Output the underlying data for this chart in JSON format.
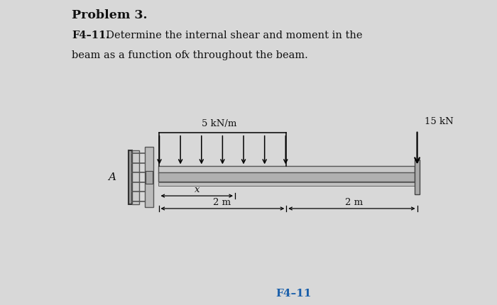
{
  "background_color": "#d8d8d8",
  "title_text": "Problem 3.",
  "problem_label": "F4–11.",
  "dist_load_label": "5 kN/m",
  "point_load_label": "15 kN",
  "dim_x_label": "x",
  "dim2_label": "2 m",
  "dim3_label": "2 m",
  "support_label": "A",
  "figure_label": "F4–11",
  "figure_label_color": "#1a5faa",
  "text_color": "#111111",
  "beam_fill": "#b8b8b8",
  "beam_edge": "#555555",
  "wall_fill": "#999999",
  "wall_edge": "#333333"
}
